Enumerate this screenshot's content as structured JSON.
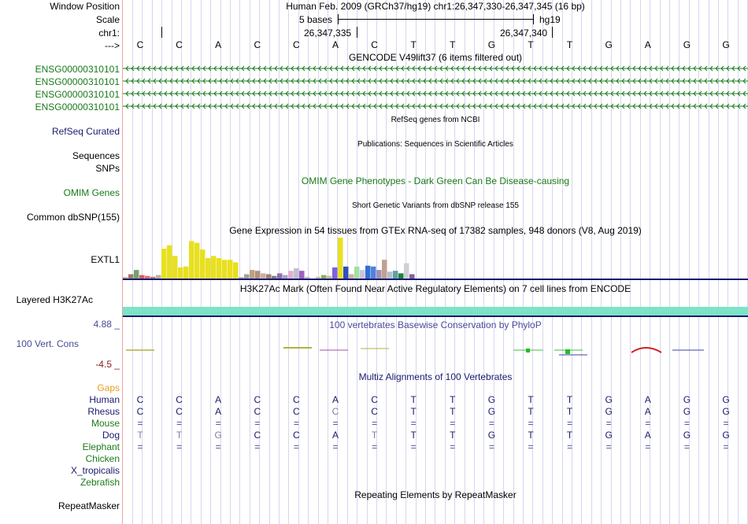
{
  "labels": {
    "window_position": "Window Position",
    "scale": "Scale",
    "chr": "chr1:",
    "arrow": "--->",
    "refseq": "RefSeq Curated",
    "sequences": "Sequences",
    "snps": "SNPs",
    "omim": "OMIM Genes",
    "dbsnp": "Common dbSNP(155)",
    "extl1": "EXTL1",
    "layered": "Layered H3K27Ac",
    "cons_max": "4.88 _",
    "cons": "100 Vert. Cons",
    "cons_min": "-4.5 _",
    "gaps": "Gaps",
    "repeatmasker": "RepeatMasker"
  },
  "header": {
    "position_text": "Human Feb. 2009 (GRCh37/hg19)   chr1:26,347,330-26,347,345 (16 bp)",
    "scale_text": "5 bases",
    "assembly": "hg19",
    "coord_left": "26,347,335",
    "coord_right": "26,347,340"
  },
  "sequence": [
    "C",
    "C",
    "A",
    "C",
    "C",
    "A",
    "C",
    "T",
    "T",
    "G",
    "T",
    "T",
    "G",
    "A",
    "G",
    "G"
  ],
  "tracks": {
    "gencode_title": "GENCODE V49lift37 (6 items filtered out)",
    "gencode_items": [
      "ENSG00000310101",
      "ENSG00000310101",
      "ENSG00000310101",
      "ENSG00000310101"
    ],
    "refseq_title": "RefSeq genes from NCBI",
    "publications_title": "Publications: Sequences in Scientific Articles",
    "omim_title": "OMIM Gene Phenotypes - Dark Green Can Be Disease-causing",
    "dbsnp_title": "Short Genetic Variants from dbSNP release 155",
    "gtex_title": "Gene Expression in 54 tissues from GTEx RNA-seq of 17382 samples, 948 donors (V8, Aug 2019)",
    "h3k27ac_title": "H3K27Ac Mark (Often Found Near Active Regulatory Elements) on 7 cell lines from ENCODE",
    "phylop_title": "100 vertebrates Basewise Conservation by PhyloP",
    "multiz_title": "Multiz Alignments of 100 Vertebrates",
    "repeat_title": "Repeating Elements by RepeatMasker"
  },
  "gtex_bars": [
    {
      "v": 0.05,
      "c": "#c8a080"
    },
    {
      "v": 0.12,
      "c": "#9a7d6a"
    },
    {
      "v": 0.22,
      "c": "#77a070"
    },
    {
      "v": 0.1,
      "c": "#d06060"
    },
    {
      "v": 0.08,
      "c": "#e07070"
    },
    {
      "v": 0.06,
      "c": "#a08080"
    },
    {
      "v": 0.1,
      "c": "#c0b0a0"
    },
    {
      "v": 0.72,
      "c": "#e8e020"
    },
    {
      "v": 0.8,
      "c": "#e8e020"
    },
    {
      "v": 0.55,
      "c": "#e8e020"
    },
    {
      "v": 0.28,
      "c": "#e8e020"
    },
    {
      "v": 0.3,
      "c": "#e8e020"
    },
    {
      "v": 0.9,
      "c": "#e8e020"
    },
    {
      "v": 0.86,
      "c": "#e8e020"
    },
    {
      "v": 0.7,
      "c": "#e8e020"
    },
    {
      "v": 0.5,
      "c": "#e8e020"
    },
    {
      "v": 0.55,
      "c": "#e8e020"
    },
    {
      "v": 0.5,
      "c": "#e8e020"
    },
    {
      "v": 0.46,
      "c": "#e8e020"
    },
    {
      "v": 0.46,
      "c": "#e8e020"
    },
    {
      "v": 0.4,
      "c": "#e8e020"
    },
    {
      "v": 0.05,
      "c": "#b8a090"
    },
    {
      "v": 0.12,
      "c": "#a0a0a0"
    },
    {
      "v": 0.22,
      "c": "#c0a080"
    },
    {
      "v": 0.2,
      "c": "#b09080"
    },
    {
      "v": 0.14,
      "c": "#c8b0a0"
    },
    {
      "v": 0.12,
      "c": "#a08070"
    },
    {
      "v": 0.08,
      "c": "#808080"
    },
    {
      "v": 0.14,
      "c": "#9070b0"
    },
    {
      "v": 0.1,
      "c": "#b0a0c0"
    },
    {
      "v": 0.2,
      "c": "#e0b0d0"
    },
    {
      "v": 0.26,
      "c": "#c0c0d0"
    },
    {
      "v": 0.2,
      "c": "#a060c0"
    },
    {
      "v": 0.06,
      "c": "#c0c0c0"
    },
    {
      "v": 0.02,
      "c": "#d0d0d0"
    },
    {
      "v": 0.06,
      "c": "#d0c0a0"
    },
    {
      "v": 0.1,
      "c": "#80b060"
    },
    {
      "v": 0.08,
      "c": "#c0c090"
    },
    {
      "v": 0.28,
      "c": "#8060e0"
    },
    {
      "v": 0.98,
      "c": "#e8e020"
    },
    {
      "v": 0.3,
      "c": "#3050c0"
    },
    {
      "v": 0.12,
      "c": "#d0b0a0"
    },
    {
      "v": 0.3,
      "c": "#a0e0a0"
    },
    {
      "v": 0.22,
      "c": "#d0c0e0"
    },
    {
      "v": 0.32,
      "c": "#3070d0"
    },
    {
      "v": 0.3,
      "c": "#5080e0"
    },
    {
      "v": 0.22,
      "c": "#a090b0"
    },
    {
      "v": 0.46,
      "c": "#c0a090"
    },
    {
      "v": 0.18,
      "c": "#b0c0d0"
    },
    {
      "v": 0.2,
      "c": "#60a0a0"
    },
    {
      "v": 0.14,
      "c": "#208040"
    },
    {
      "v": 0.38,
      "c": "#d0d0d0"
    },
    {
      "v": 0.12,
      "c": "#8060a0"
    },
    {
      "v": 0.02,
      "c": "#c0c0c0"
    }
  ],
  "alignment": [
    {
      "species": "Human",
      "color": "#1a1a6e",
      "bases": [
        "C",
        "C",
        "A",
        "C",
        "C",
        "A",
        "C",
        "T",
        "T",
        "G",
        "T",
        "T",
        "G",
        "A",
        "G",
        "G"
      ]
    },
    {
      "species": "Rhesus",
      "color": "#1a1a6e",
      "bases": [
        "C",
        "C",
        "A",
        "C",
        "C",
        "C",
        "C",
        "T",
        "T",
        "G",
        "T",
        "T",
        "G",
        "A",
        "G",
        "G"
      ]
    },
    {
      "species": "Mouse",
      "color": "#1a7a1a",
      "bases": [
        "=",
        "=",
        "=",
        "=",
        "=",
        "=",
        "=",
        "=",
        "=",
        "=",
        "=",
        "=",
        "=",
        "=",
        "=",
        "="
      ]
    },
    {
      "species": "Dog",
      "color": "#1a1a6e",
      "bases": [
        "T",
        "T",
        "G",
        "C",
        "C",
        "A",
        "T",
        "T",
        "T",
        "G",
        "T",
        "T",
        "G",
        "A",
        "G",
        "G"
      ]
    },
    {
      "species": "Elephant",
      "color": "#1a7a1a",
      "bases": [
        "=",
        "=",
        "=",
        "=",
        "=",
        "=",
        "=",
        "=",
        "=",
        "=",
        "=",
        "=",
        "=",
        "=",
        "=",
        "="
      ]
    },
    {
      "species": "Chicken",
      "color": "#1a7a1a",
      "bases": [
        "",
        "",
        "",
        "",
        "",
        "",
        "",
        "",
        "",
        "",
        "",
        "",
        "",
        "",
        "",
        ""
      ]
    },
    {
      "species": "X_tropicalis",
      "color": "#1a1a6e",
      "bases": [
        "",
        "",
        "",
        "",
        "",
        "",
        "",
        "",
        "",
        "",
        "",
        "",
        "",
        "",
        "",
        ""
      ]
    },
    {
      "species": "Zebrafish",
      "color": "#1a7a1a",
      "bases": [
        "",
        "",
        "",
        "",
        "",
        "",
        "",
        "",
        "",
        "",
        "",
        "",
        "",
        "",
        "",
        ""
      ]
    }
  ],
  "colors": {
    "label_green": "#1a7a1a",
    "label_navy": "#1a1a6e",
    "gaps_orange": "#e8a020",
    "h3k27ac_teal": "#7de3c6",
    "divider_navy": "#1a1a6e",
    "phylop_blue": "#4a4a9a",
    "cons_red": "#8a1a1a",
    "mismatch_gray": "#8080a0"
  }
}
